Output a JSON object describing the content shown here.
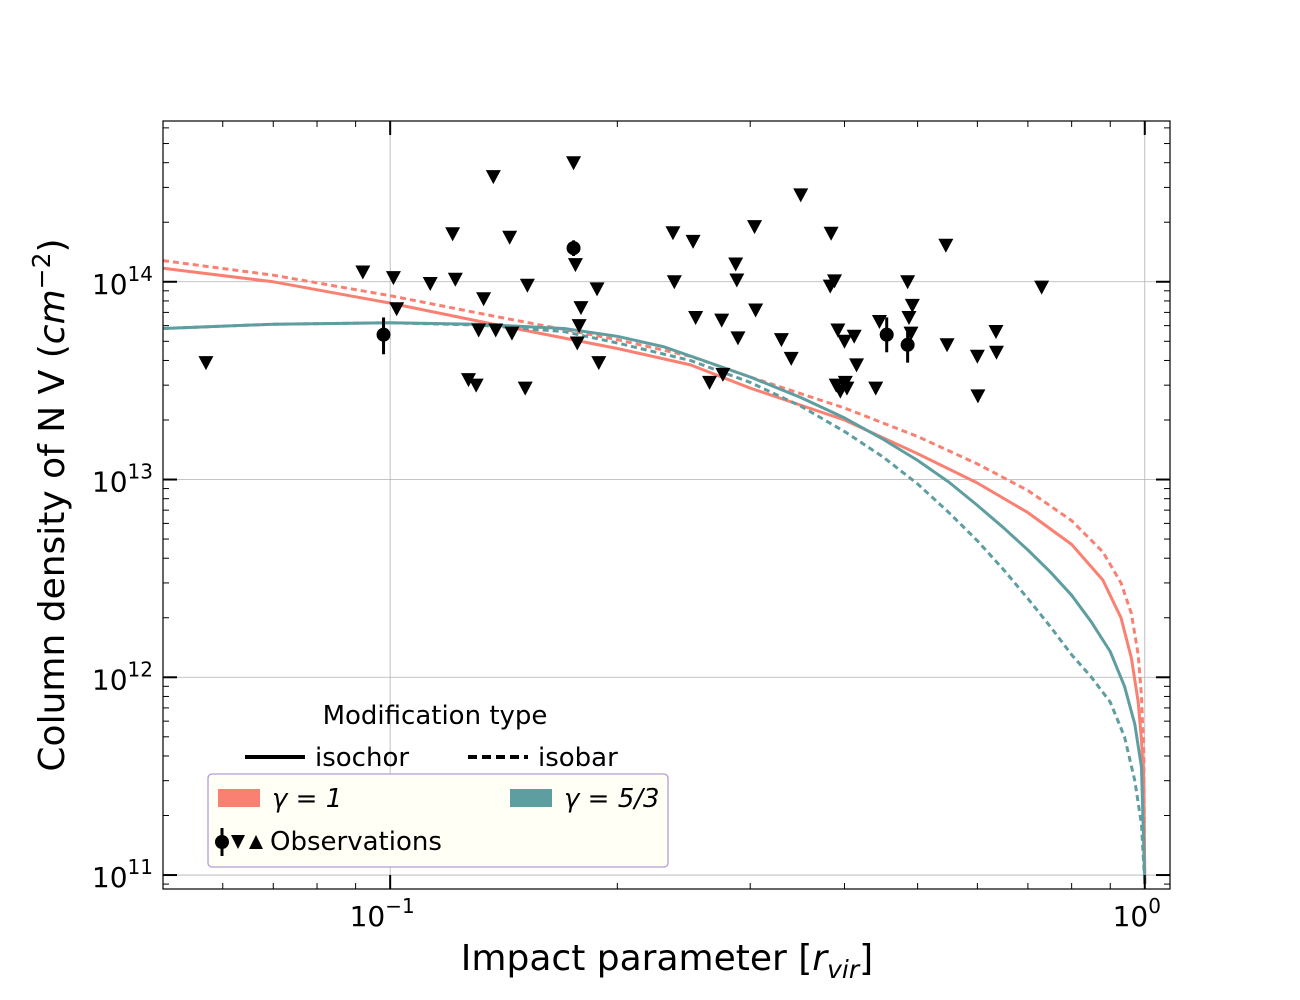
{
  "chart_data": {
    "type": "line",
    "title": "",
    "xlabel": "Impact parameter [r_vir]",
    "ylabel": "Column density of N V (cm^-2)",
    "xscale": "log",
    "yscale": "log",
    "xlim": [
      0.05,
      1.08
    ],
    "ylim": [
      85000000000.0,
      650000000000000.0
    ],
    "grid": true,
    "x_ticks": [
      {
        "value": 0.1,
        "base": "10",
        "exp": "−1"
      },
      {
        "value": 1.0,
        "base": "10",
        "exp": "0"
      }
    ],
    "y_ticks": [
      {
        "value": 100000000000.0,
        "base": "10",
        "exp": "11"
      },
      {
        "value": 1000000000000.0,
        "base": "10",
        "exp": "12"
      },
      {
        "value": 10000000000000.0,
        "base": "10",
        "exp": "13"
      },
      {
        "value": 100000000000000.0,
        "base": "10",
        "exp": "14"
      }
    ],
    "legend": {
      "placement": "lower-left",
      "header": "Modification type",
      "linestyles": [
        {
          "label": "isochor",
          "style": "solid"
        },
        {
          "label": "isobar",
          "style": "dashed"
        }
      ],
      "gammas": [
        {
          "label": "γ = 1",
          "color": "#fa8072"
        },
        {
          "label": "γ = 5/3",
          "color": "#5f9ea0"
        }
      ],
      "observations_label": "Observations",
      "background": "#fffff5",
      "border": "#b49ad6"
    },
    "series": [
      {
        "name": "γ = 1 isochor",
        "color": "#fa8072",
        "style": "solid",
        "points": [
          [
            0.05,
            117000000000000.0
          ],
          [
            0.07,
            100000000000000.0
          ],
          [
            0.1,
            78000000000000.0
          ],
          [
            0.14,
            60000000000000.0
          ],
          [
            0.2,
            46000000000000.0
          ],
          [
            0.25,
            38000000000000.0
          ],
          [
            0.3,
            29000000000000.0
          ],
          [
            0.4,
            20000000000000.0
          ],
          [
            0.5,
            13500000000000.0
          ],
          [
            0.6,
            9600000000000.0
          ],
          [
            0.7,
            6800000000000.0
          ],
          [
            0.8,
            4700000000000.0
          ],
          [
            0.88,
            3100000000000.0
          ],
          [
            0.93,
            2000000000000.0
          ],
          [
            0.96,
            1250000000000.0
          ],
          [
            0.98,
            750000000000.0
          ],
          [
            0.99,
            480000000000.0
          ],
          [
            0.997,
            300000000000.0
          ],
          [
            1.0,
            90000000000.0
          ]
        ]
      },
      {
        "name": "γ = 1 isobar",
        "color": "#fa8072",
        "style": "dashed",
        "points": [
          [
            0.05,
            128000000000000.0
          ],
          [
            0.07,
            108000000000000.0
          ],
          [
            0.1,
            85000000000000.0
          ],
          [
            0.14,
            66000000000000.0
          ],
          [
            0.2,
            51000000000000.0
          ],
          [
            0.25,
            42000000000000.0
          ],
          [
            0.3,
            33000000000000.0
          ],
          [
            0.4,
            23000000000000.0
          ],
          [
            0.5,
            16500000000000.0
          ],
          [
            0.6,
            12000000000000.0
          ],
          [
            0.7,
            8800000000000.0
          ],
          [
            0.8,
            6200000000000.0
          ],
          [
            0.88,
            4300000000000.0
          ],
          [
            0.93,
            3000000000000.0
          ],
          [
            0.96,
            2100000000000.0
          ],
          [
            0.98,
            1300000000000.0
          ],
          [
            0.99,
            800000000000.0
          ],
          [
            0.997,
            400000000000.0
          ],
          [
            1.0,
            90000000000.0
          ]
        ]
      },
      {
        "name": "γ = 5/3 isochor",
        "color": "#5f9ea0",
        "style": "solid",
        "points": [
          [
            0.05,
            58000000000000.0
          ],
          [
            0.07,
            61000000000000.0
          ],
          [
            0.1,
            62000000000000.0
          ],
          [
            0.13,
            61000000000000.0
          ],
          [
            0.17,
            58000000000000.0
          ],
          [
            0.2,
            53000000000000.0
          ],
          [
            0.23,
            47000000000000.0
          ],
          [
            0.26,
            40000000000000.0
          ],
          [
            0.3,
            33000000000000.0
          ],
          [
            0.35,
            26000000000000.0
          ],
          [
            0.4,
            20500000000000.0
          ],
          [
            0.45,
            16000000000000.0
          ],
          [
            0.5,
            12500000000000.0
          ],
          [
            0.55,
            9700000000000.0
          ],
          [
            0.6,
            7400000000000.0
          ],
          [
            0.65,
            5700000000000.0
          ],
          [
            0.7,
            4400000000000.0
          ],
          [
            0.75,
            3400000000000.0
          ],
          [
            0.8,
            2600000000000.0
          ],
          [
            0.85,
            1900000000000.0
          ],
          [
            0.9,
            1350000000000.0
          ],
          [
            0.94,
            900000000000.0
          ],
          [
            0.97,
            580000000000.0
          ],
          [
            0.99,
            350000000000.0
          ],
          [
            1.0,
            90000000000.0
          ]
        ]
      },
      {
        "name": "γ = 5/3 isobar",
        "color": "#5f9ea0",
        "style": "dashed",
        "points": [
          [
            0.05,
            58000000000000.0
          ],
          [
            0.07,
            61000000000000.0
          ],
          [
            0.1,
            62000000000000.0
          ],
          [
            0.13,
            60500000000000.0
          ],
          [
            0.17,
            56000000000000.0
          ],
          [
            0.2,
            49000000000000.0
          ],
          [
            0.25,
            40000000000000.0
          ],
          [
            0.3,
            31000000000000.0
          ],
          [
            0.35,
            23500000000000.0
          ],
          [
            0.4,
            17500000000000.0
          ],
          [
            0.45,
            13000000000000.0
          ],
          [
            0.5,
            9500000000000.0
          ],
          [
            0.55,
            6800000000000.0
          ],
          [
            0.6,
            4900000000000.0
          ],
          [
            0.65,
            3500000000000.0
          ],
          [
            0.7,
            2500000000000.0
          ],
          [
            0.75,
            1800000000000.0
          ],
          [
            0.8,
            1300000000000.0
          ],
          [
            0.85,
            1000000000000.0
          ],
          [
            0.9,
            750000000000.0
          ],
          [
            0.94,
            500000000000.0
          ],
          [
            0.97,
            300000000000.0
          ],
          [
            0.99,
            180000000000.0
          ],
          [
            1.0,
            90000000000.0
          ]
        ]
      }
    ],
    "observations": {
      "detections": [
        {
          "x": 0.098,
          "y": 54000000000000.0,
          "ylo": 43000000000000.0,
          "yhi": 66000000000000.0
        },
        {
          "x": 0.175,
          "y": 148000000000000.0,
          "ylo": 135000000000000.0,
          "yhi": 162000000000000.0
        },
        {
          "x": 0.455,
          "y": 54000000000000.0,
          "ylo": 44000000000000.0,
          "yhi": 66000000000000.0
        },
        {
          "x": 0.485,
          "y": 48000000000000.0,
          "ylo": 39000000000000.0,
          "yhi": 58000000000000.0
        }
      ],
      "upper_limits": [
        [
          0.057,
          39000000000000.0
        ],
        [
          0.092,
          112000000000000.0
        ],
        [
          0.101,
          105000000000000.0
        ],
        [
          0.102,
          73000000000000.0
        ],
        [
          0.113,
          98000000000000.0
        ],
        [
          0.121,
          175000000000000.0
        ],
        [
          0.122,
          103000000000000.0
        ],
        [
          0.127,
          32000000000000.0
        ],
        [
          0.13,
          30000000000000.0
        ],
        [
          0.131,
          57000000000000.0
        ],
        [
          0.133,
          82000000000000.0
        ],
        [
          0.137,
          340000000000000.0
        ],
        [
          0.138,
          57000000000000.0
        ],
        [
          0.144,
          168000000000000.0
        ],
        [
          0.145,
          55000000000000.0
        ],
        [
          0.151,
          29000000000000.0
        ],
        [
          0.152,
          96000000000000.0
        ],
        [
          0.175,
          400000000000000.0
        ],
        [
          0.176,
          122000000000000.0
        ],
        [
          0.177,
          49000000000000.0
        ],
        [
          0.178,
          60000000000000.0
        ],
        [
          0.179,
          74000000000000.0
        ],
        [
          0.188,
          92000000000000.0
        ],
        [
          0.189,
          39000000000000.0
        ],
        [
          0.237,
          177000000000000.0
        ],
        [
          0.238,
          100000000000000.0
        ],
        [
          0.252,
          160000000000000.0
        ],
        [
          0.254,
          66000000000000.0
        ],
        [
          0.265,
          31000000000000.0
        ],
        [
          0.275,
          64000000000000.0
        ],
        [
          0.276,
          34000000000000.0
        ],
        [
          0.287,
          123000000000000.0
        ],
        [
          0.288,
          102000000000000.0
        ],
        [
          0.289,
          52000000000000.0
        ],
        [
          0.304,
          190000000000000.0
        ],
        [
          0.305,
          72000000000000.0
        ],
        [
          0.33,
          51000000000000.0
        ],
        [
          0.34,
          41000000000000.0
        ],
        [
          0.35,
          275000000000000.0
        ],
        [
          0.383,
          95000000000000.0
        ],
        [
          0.384,
          176000000000000.0
        ],
        [
          0.388,
          101000000000000.0
        ],
        [
          0.39,
          30000000000000.0
        ],
        [
          0.392,
          57000000000000.0
        ],
        [
          0.395,
          28000000000000.0
        ],
        [
          0.4,
          50000000000000.0
        ],
        [
          0.401,
          31000000000000.0
        ],
        [
          0.403,
          29000000000000.0
        ],
        [
          0.412,
          53000000000000.0
        ],
        [
          0.415,
          38000000000000.0
        ],
        [
          0.44,
          29000000000000.0
        ],
        [
          0.445,
          63000000000000.0
        ],
        [
          0.485,
          100000000000000.0
        ],
        [
          0.487,
          66000000000000.0
        ],
        [
          0.49,
          55000000000000.0
        ],
        [
          0.492,
          76000000000000.0
        ],
        [
          0.545,
          153000000000000.0
        ],
        [
          0.547,
          48000000000000.0
        ],
        [
          0.6,
          42000000000000.0
        ],
        [
          0.601,
          26500000000000.0
        ],
        [
          0.635,
          56000000000000.0
        ],
        [
          0.636,
          44000000000000.0
        ],
        [
          0.73,
          94000000000000.0
        ]
      ]
    }
  }
}
